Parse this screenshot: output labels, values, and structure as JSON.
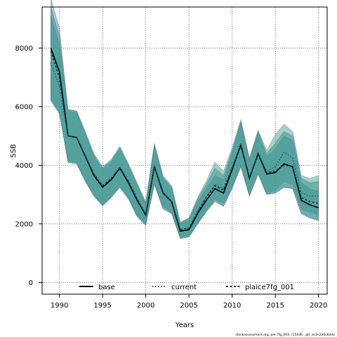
{
  "chart_data": {
    "type": "line",
    "xlabel": "Years",
    "ylabel": "SSB",
    "xlim": [
      1988,
      2021
    ],
    "ylim": [
      -400,
      9400
    ],
    "x_ticks": [
      1990,
      1995,
      2000,
      2005,
      2010,
      2015,
      2020
    ],
    "y_ticks": [
      0,
      2000,
      4000,
      6000,
      8000
    ],
    "grid": true,
    "legend_position": "bottom",
    "years": [
      1989,
      1990,
      1991,
      1992,
      1993,
      1994,
      1995,
      1996,
      1997,
      1998,
      1999,
      2000,
      2001,
      2002,
      2003,
      2004,
      2005,
      2006,
      2007,
      2008,
      2009,
      2010,
      2011,
      2012,
      2013,
      2014,
      2015,
      2016,
      2017,
      2018,
      2019,
      2020
    ],
    "series": [
      {
        "name": "base",
        "color": "#000000",
        "style": "solid",
        "values": [
          8000,
          7200,
          5000,
          4950,
          4300,
          3650,
          3250,
          3500,
          3900,
          3400,
          2800,
          2300,
          3950,
          3050,
          2750,
          1750,
          1800,
          2350,
          2800,
          3200,
          3050,
          3850,
          4700,
          3550,
          4400,
          3700,
          3750,
          4050,
          3950,
          2800,
          2650,
          2550
        ],
        "band_low": [
          6300,
          5800,
          4100,
          4050,
          3450,
          2950,
          2600,
          2900,
          3250,
          2850,
          2250,
          1950,
          3350,
          2550,
          2350,
          1500,
          1550,
          2000,
          2400,
          2750,
          2600,
          3200,
          3950,
          2950,
          3700,
          3000,
          3050,
          3250,
          3200,
          2350,
          2200,
          2100
        ],
        "band_high": [
          9700,
          8700,
          5850,
          5800,
          5050,
          4300,
          3850,
          4100,
          4550,
          3950,
          3300,
          2650,
          4650,
          3550,
          3200,
          2000,
          2150,
          2750,
          3200,
          3650,
          3500,
          4400,
          5450,
          4150,
          5100,
          4300,
          4550,
          5000,
          4850,
          3400,
          3200,
          3100
        ],
        "band_color": "#4f8fb3"
      },
      {
        "name": "current",
        "color": "#1f5a8c",
        "style": "dotted",
        "values": [
          7500,
          6700,
          5000,
          4950,
          4350,
          3700,
          3300,
          3550,
          3950,
          3450,
          2850,
          2350,
          4000,
          3100,
          2800,
          1800,
          1850,
          2450,
          2900,
          3350,
          3200,
          3950,
          4750,
          3600,
          4400,
          3800,
          3950,
          4450,
          4250,
          3050,
          2950,
          2950
        ],
        "band_low": [
          6200,
          5750,
          4150,
          4100,
          3500,
          3000,
          2650,
          2950,
          3300,
          2900,
          2300,
          2000,
          3400,
          2600,
          2400,
          1550,
          1600,
          2050,
          2450,
          2850,
          2700,
          3300,
          4000,
          3000,
          3700,
          3050,
          3150,
          3450,
          3350,
          2500,
          2400,
          2300
        ],
        "band_high": [
          9100,
          8100,
          5900,
          5850,
          5150,
          4400,
          3950,
          4200,
          4650,
          4050,
          3400,
          2750,
          4750,
          3650,
          3300,
          2050,
          2200,
          2900,
          3450,
          4100,
          3800,
          4600,
          5550,
          4250,
          5200,
          4500,
          5050,
          5400,
          5150,
          3650,
          3550,
          3650
        ],
        "band_color": "#3a9a8a"
      },
      {
        "name": "plaice7fg_001",
        "color": "#0d3b30",
        "style": "dashed",
        "values": [
          7900,
          7000,
          5000,
          4950,
          4300,
          3700,
          3300,
          3550,
          3900,
          3450,
          2850,
          2300,
          3950,
          3050,
          2750,
          1800,
          1850,
          2400,
          2900,
          3300,
          3150,
          3900,
          4650,
          3600,
          4350,
          3750,
          3800,
          4000,
          3950,
          2900,
          2750,
          2700
        ],
        "band_low": [
          6250,
          5800,
          4100,
          4050,
          3450,
          2950,
          2650,
          2900,
          3250,
          2850,
          2250,
          1950,
          3350,
          2500,
          2350,
          1500,
          1550,
          2000,
          2450,
          2800,
          2600,
          3250,
          3950,
          2950,
          3700,
          3000,
          3050,
          3250,
          3200,
          2350,
          2200,
          2150
        ],
        "band_high": [
          9400,
          8400,
          5900,
          5850,
          5100,
          4350,
          3900,
          4150,
          4600,
          4000,
          3350,
          2700,
          4700,
          3600,
          3250,
          2050,
          2200,
          2850,
          3350,
          3900,
          3650,
          4500,
          5500,
          4200,
          5150,
          4400,
          4750,
          5150,
          5000,
          3550,
          3400,
          3450
        ],
        "band_color": "#2e8b82"
      }
    ]
  },
  "footer": "stockassessment.org, ple.7fg_003, r15436 , git: ec2c2a0c6dde"
}
